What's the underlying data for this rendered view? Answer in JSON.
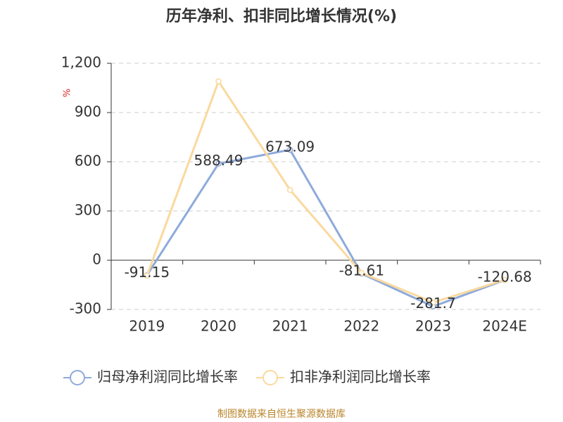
{
  "chart_data": {
    "type": "line",
    "title": "历年净利、扣非同比增长情况(%)",
    "y_unit": "%",
    "categories": [
      "2019",
      "2020",
      "2021",
      "2022",
      "2023",
      "2024E"
    ],
    "series": [
      {
        "name": "归母净利润同比增长率",
        "color": "#8eaadb",
        "values": [
          -91.15,
          588.49,
          673.09,
          -81.61,
          -281.7,
          -120.68
        ],
        "show_labels": true
      },
      {
        "name": "扣非净利润同比增长率",
        "color": "#fad99e",
        "values": [
          -94,
          1090,
          428,
          -77,
          -257,
          -120
        ],
        "show_labels": false
      }
    ],
    "ylim": [
      -300,
      1200
    ],
    "yticks": [
      -300,
      0,
      300,
      600,
      900,
      {
        "value": 1200,
        "label": "1,200"
      }
    ],
    "grid": true,
    "legend": "bottom",
    "source": "制图数据来自恒生聚源数据库"
  }
}
